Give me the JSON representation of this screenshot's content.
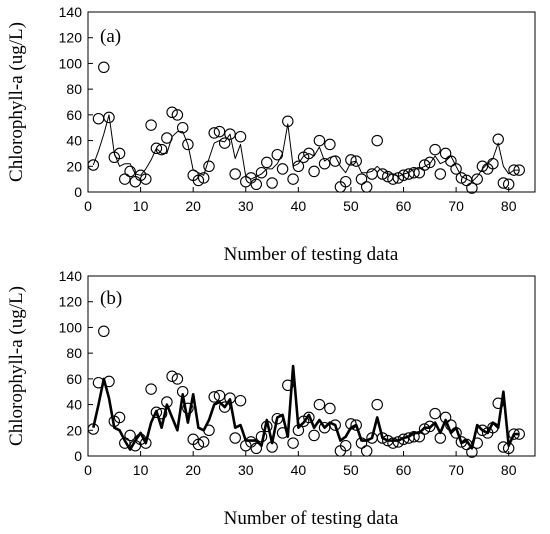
{
  "chart_data": [
    {
      "type": "scatter",
      "panel_label": "(a)",
      "xlabel": "Number of testing data",
      "ylabel": "Chlorophyll-a (ug/L)",
      "xlim": [
        0,
        85
      ],
      "ylim": [
        0,
        140
      ],
      "x_ticks": [
        "0",
        "10",
        "20",
        "30",
        "40",
        "50",
        "60",
        "70",
        "80"
      ],
      "y_ticks": [
        "0",
        "20",
        "40",
        "60",
        "80",
        "100",
        "120",
        "140"
      ],
      "grid": false,
      "series": [
        {
          "role": "observed",
          "marker": "open-circle",
          "values": [
            21,
            57,
            97,
            58,
            27,
            30,
            10,
            16,
            8,
            13,
            10,
            52,
            34,
            33,
            42,
            62,
            60,
            50,
            37,
            13,
            9,
            11,
            20,
            46,
            47,
            38,
            45,
            14,
            43,
            8,
            11,
            6,
            15,
            23,
            7,
            29,
            18,
            55,
            10,
            20,
            27,
            30,
            16,
            40,
            22,
            37,
            24,
            4,
            8,
            25,
            24,
            10,
            4,
            14,
            40,
            14,
            12,
            10,
            11,
            13,
            14,
            15,
            15,
            21,
            23,
            33,
            14,
            30,
            24,
            18,
            11,
            9,
            3,
            10,
            20,
            18,
            22,
            41,
            7,
            6,
            17,
            17
          ]
        },
        {
          "role": "predicted",
          "line": "thin",
          "values": [
            21,
            32,
            45,
            60,
            30,
            20,
            22,
            22,
            14,
            13,
            18,
            25,
            34,
            30,
            30,
            43,
            47,
            47,
            37,
            17,
            15,
            13,
            26,
            38,
            40,
            39,
            45,
            26,
            37,
            12,
            10,
            12,
            14,
            18,
            18,
            22,
            30,
            53,
            20,
            22,
            28,
            30,
            28,
            35,
            24,
            27,
            28,
            20,
            15,
            23,
            24,
            15,
            15,
            16,
            20,
            16,
            14,
            14,
            12,
            14,
            15,
            18,
            18,
            20,
            22,
            28,
            22,
            24,
            28,
            20,
            12,
            10,
            8,
            12,
            18,
            22,
            26,
            38,
            20,
            14,
            17,
            17
          ]
        }
      ]
    },
    {
      "type": "scatter",
      "panel_label": "(b)",
      "xlabel": "Number of testing data",
      "ylabel": "Chlorophyll-a (ug/L)",
      "xlim": [
        0,
        85
      ],
      "ylim": [
        0,
        140
      ],
      "x_ticks": [
        "0",
        "10",
        "20",
        "30",
        "40",
        "50",
        "60",
        "70",
        "80"
      ],
      "y_ticks": [
        "0",
        "20",
        "40",
        "60",
        "80",
        "100",
        "120",
        "140"
      ],
      "grid": false,
      "series": [
        {
          "role": "observed",
          "marker": "open-circle",
          "values": [
            21,
            57,
            97,
            58,
            27,
            30,
            10,
            16,
            8,
            13,
            10,
            52,
            34,
            33,
            42,
            62,
            60,
            50,
            37,
            13,
            9,
            11,
            20,
            46,
            47,
            38,
            45,
            14,
            43,
            8,
            11,
            6,
            15,
            23,
            7,
            29,
            18,
            55,
            10,
            20,
            27,
            30,
            16,
            40,
            22,
            37,
            24,
            4,
            8,
            25,
            24,
            10,
            4,
            14,
            40,
            14,
            12,
            10,
            11,
            13,
            14,
            15,
            15,
            21,
            23,
            33,
            14,
            30,
            24,
            18,
            11,
            9,
            3,
            10,
            20,
            18,
            22,
            41,
            7,
            6,
            17,
            17
          ]
        },
        {
          "role": "predicted",
          "line": "thick",
          "values": [
            22,
            40,
            60,
            45,
            22,
            20,
            12,
            5,
            12,
            18,
            10,
            26,
            35,
            22,
            40,
            30,
            20,
            48,
            26,
            48,
            22,
            20,
            28,
            40,
            42,
            38,
            44,
            22,
            24,
            12,
            12,
            12,
            8,
            28,
            10,
            30,
            32,
            15,
            70,
            22,
            26,
            32,
            22,
            28,
            22,
            26,
            24,
            12,
            15,
            22,
            24,
            12,
            12,
            14,
            30,
            14,
            12,
            12,
            12,
            14,
            15,
            18,
            18,
            22,
            22,
            26,
            18,
            28,
            18,
            22,
            10,
            12,
            6,
            24,
            20,
            18,
            26,
            22,
            50,
            8,
            17,
            17
          ]
        }
      ]
    }
  ]
}
